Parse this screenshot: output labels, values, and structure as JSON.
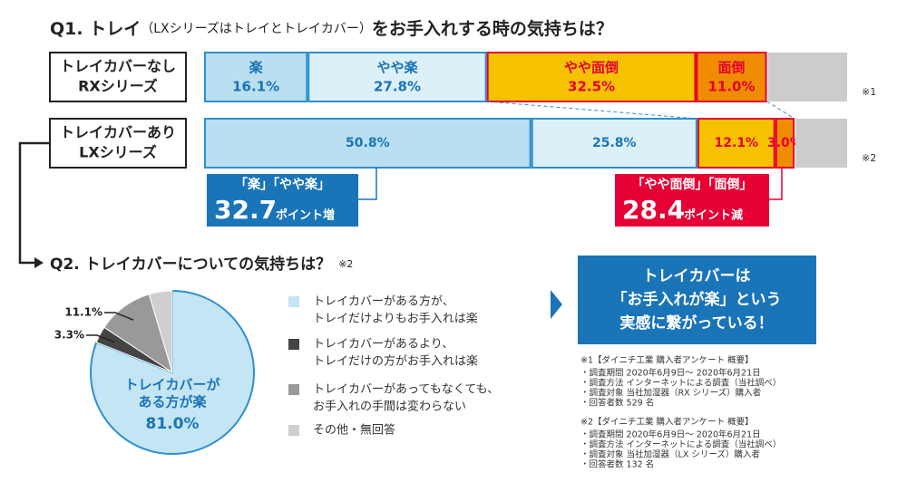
{
  "chart_data": [
    {
      "type": "stacked-bar",
      "title": "Q1. トレイ",
      "title_note": "（LXシリーズはトレイとトレイカバー）",
      "title_end": "をお手入れする時の気持ちは？",
      "categories": [
        [
          "トレイカバーなし",
          "RXシリーズ"
        ],
        [
          "トレイカバーあり",
          "LXシリーズ"
        ]
      ],
      "category_notes": [
        "※1",
        "※2"
      ],
      "xlim": [
        0,
        100
      ],
      "series": [
        {
          "name": "楽",
          "color": "#b9dff0",
          "edgecolor": "#2e8fd0",
          "text_color": "#1a74b8",
          "values": [
            16.1,
            50.8
          ],
          "value_labels": [
            "16.1%",
            "50.8%"
          ]
        },
        {
          "name": "やや楽",
          "color": "#dcf0f8",
          "edgecolor": "#2e8fd0",
          "text_color": "#1a74b8",
          "values": [
            27.8,
            25.8
          ],
          "value_labels": [
            "27.8%",
            "25.8%"
          ]
        },
        {
          "name": "やや面倒",
          "color": "#f6c200",
          "edgecolor": "#e60033",
          "text_color": "#e60033",
          "values": [
            32.5,
            12.1
          ],
          "value_labels": [
            "32.5%",
            "12.1%"
          ]
        },
        {
          "name": "面倒",
          "color": "#f08c00",
          "edgecolor": "#e60033",
          "text_color": "#e60033",
          "values": [
            11.0,
            3.0
          ],
          "value_labels": [
            "11.0%",
            "3.0%"
          ]
        },
        {
          "color": "#cccccc",
          "values": [
            12.6,
            8.3
          ]
        }
      ],
      "annotations": [
        {
          "label": "「楽」「やや楽」",
          "value": 32.7,
          "unit": "ポイント増",
          "color": "#1a74b8"
        },
        {
          "label": "「やや面倒」「面倒」",
          "value": 28.4,
          "unit": "ポイント減",
          "color": "#e60033"
        }
      ]
    },
    {
      "type": "pie",
      "title": "Q2. トレイカバーについての気持ちは？",
      "title_note": "※2",
      "categories": [
        [
          "トレイカバーがある方が、",
          "トレイだけよりもお手入れは楽"
        ],
        [
          "トレイカバーがあるより、",
          "トレイだけの方がお手入れは楽"
        ],
        [
          "トレイカバーがあってもなくても、",
          "お手入れの手間は変わらない"
        ],
        [
          "その他・無回答"
        ]
      ],
      "values": [
        81.0,
        3.3,
        11.1,
        4.6
      ],
      "value_labels": [
        "81.0%",
        "3.3%",
        "11.1%",
        null
      ],
      "colors": [
        "#c4e5f3",
        "#444444",
        "#999999",
        "#cfcfcf"
      ],
      "inner_label": [
        "トレイカバーが",
        "ある方が楽"
      ]
    }
  ],
  "message": [
    "トレイカバーは",
    "「お手入れが楽」という",
    "実感に繋がっている！"
  ],
  "notes": [
    {
      "heading": "※1【ダイニチ工業 購入者アンケート 概要】",
      "lines": [
        "・調査期間 2020年6月9日～ 2020年6月21日",
        "・調査方法 インターネットによる調査（当社調べ）",
        "・調査対象 当社加湿器（RX シリーズ）購入者",
        "・回答者数 529 名"
      ]
    },
    {
      "heading": "※2【ダイニチ工業 購入者アンケート 概要】",
      "lines": [
        "・調査期間 2020年6月9日～ 2020年6月21日",
        "・調査方法 インターネットによる調査（当社調べ）",
        "・調査対象 当社加湿器（LX シリーズ）購入者",
        "・回答者数 132 名"
      ]
    }
  ]
}
